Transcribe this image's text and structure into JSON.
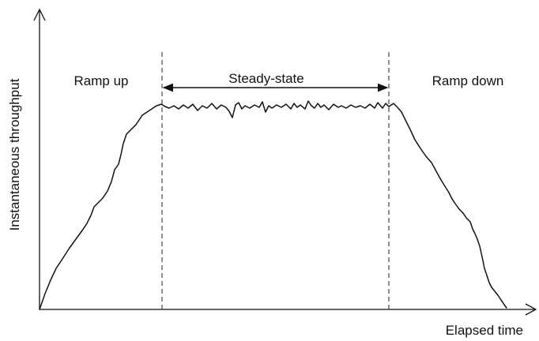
{
  "diagram": {
    "phases": {
      "ramp_up": "Ramp up",
      "steady_state": "Steady-state",
      "ramp_down": "Ramp down"
    },
    "axes": {
      "x_label": "Elapsed time",
      "y_label": "Instantaneous throughput"
    }
  }
}
